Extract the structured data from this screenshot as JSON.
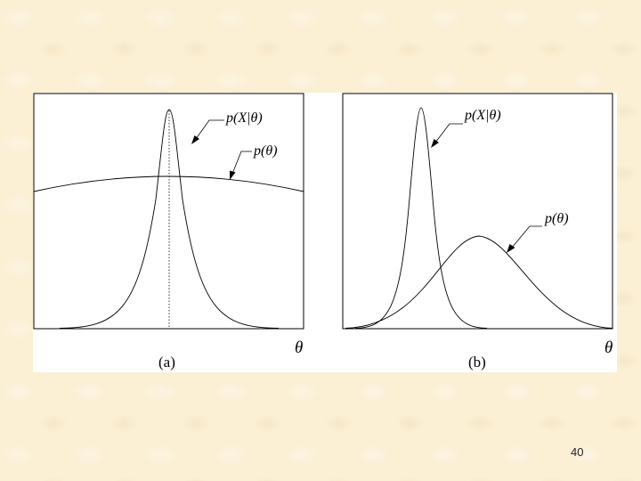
{
  "panels": [
    {
      "caption": "(a)",
      "axis_symbol": "θ",
      "likelihood_label": "p(X|θ)",
      "prior_label": "p(θ)"
    },
    {
      "caption": "(b)",
      "axis_symbol": "θ",
      "likelihood_label": "p(X|θ)",
      "prior_label": "p(θ)"
    }
  ],
  "page_number": "40"
}
